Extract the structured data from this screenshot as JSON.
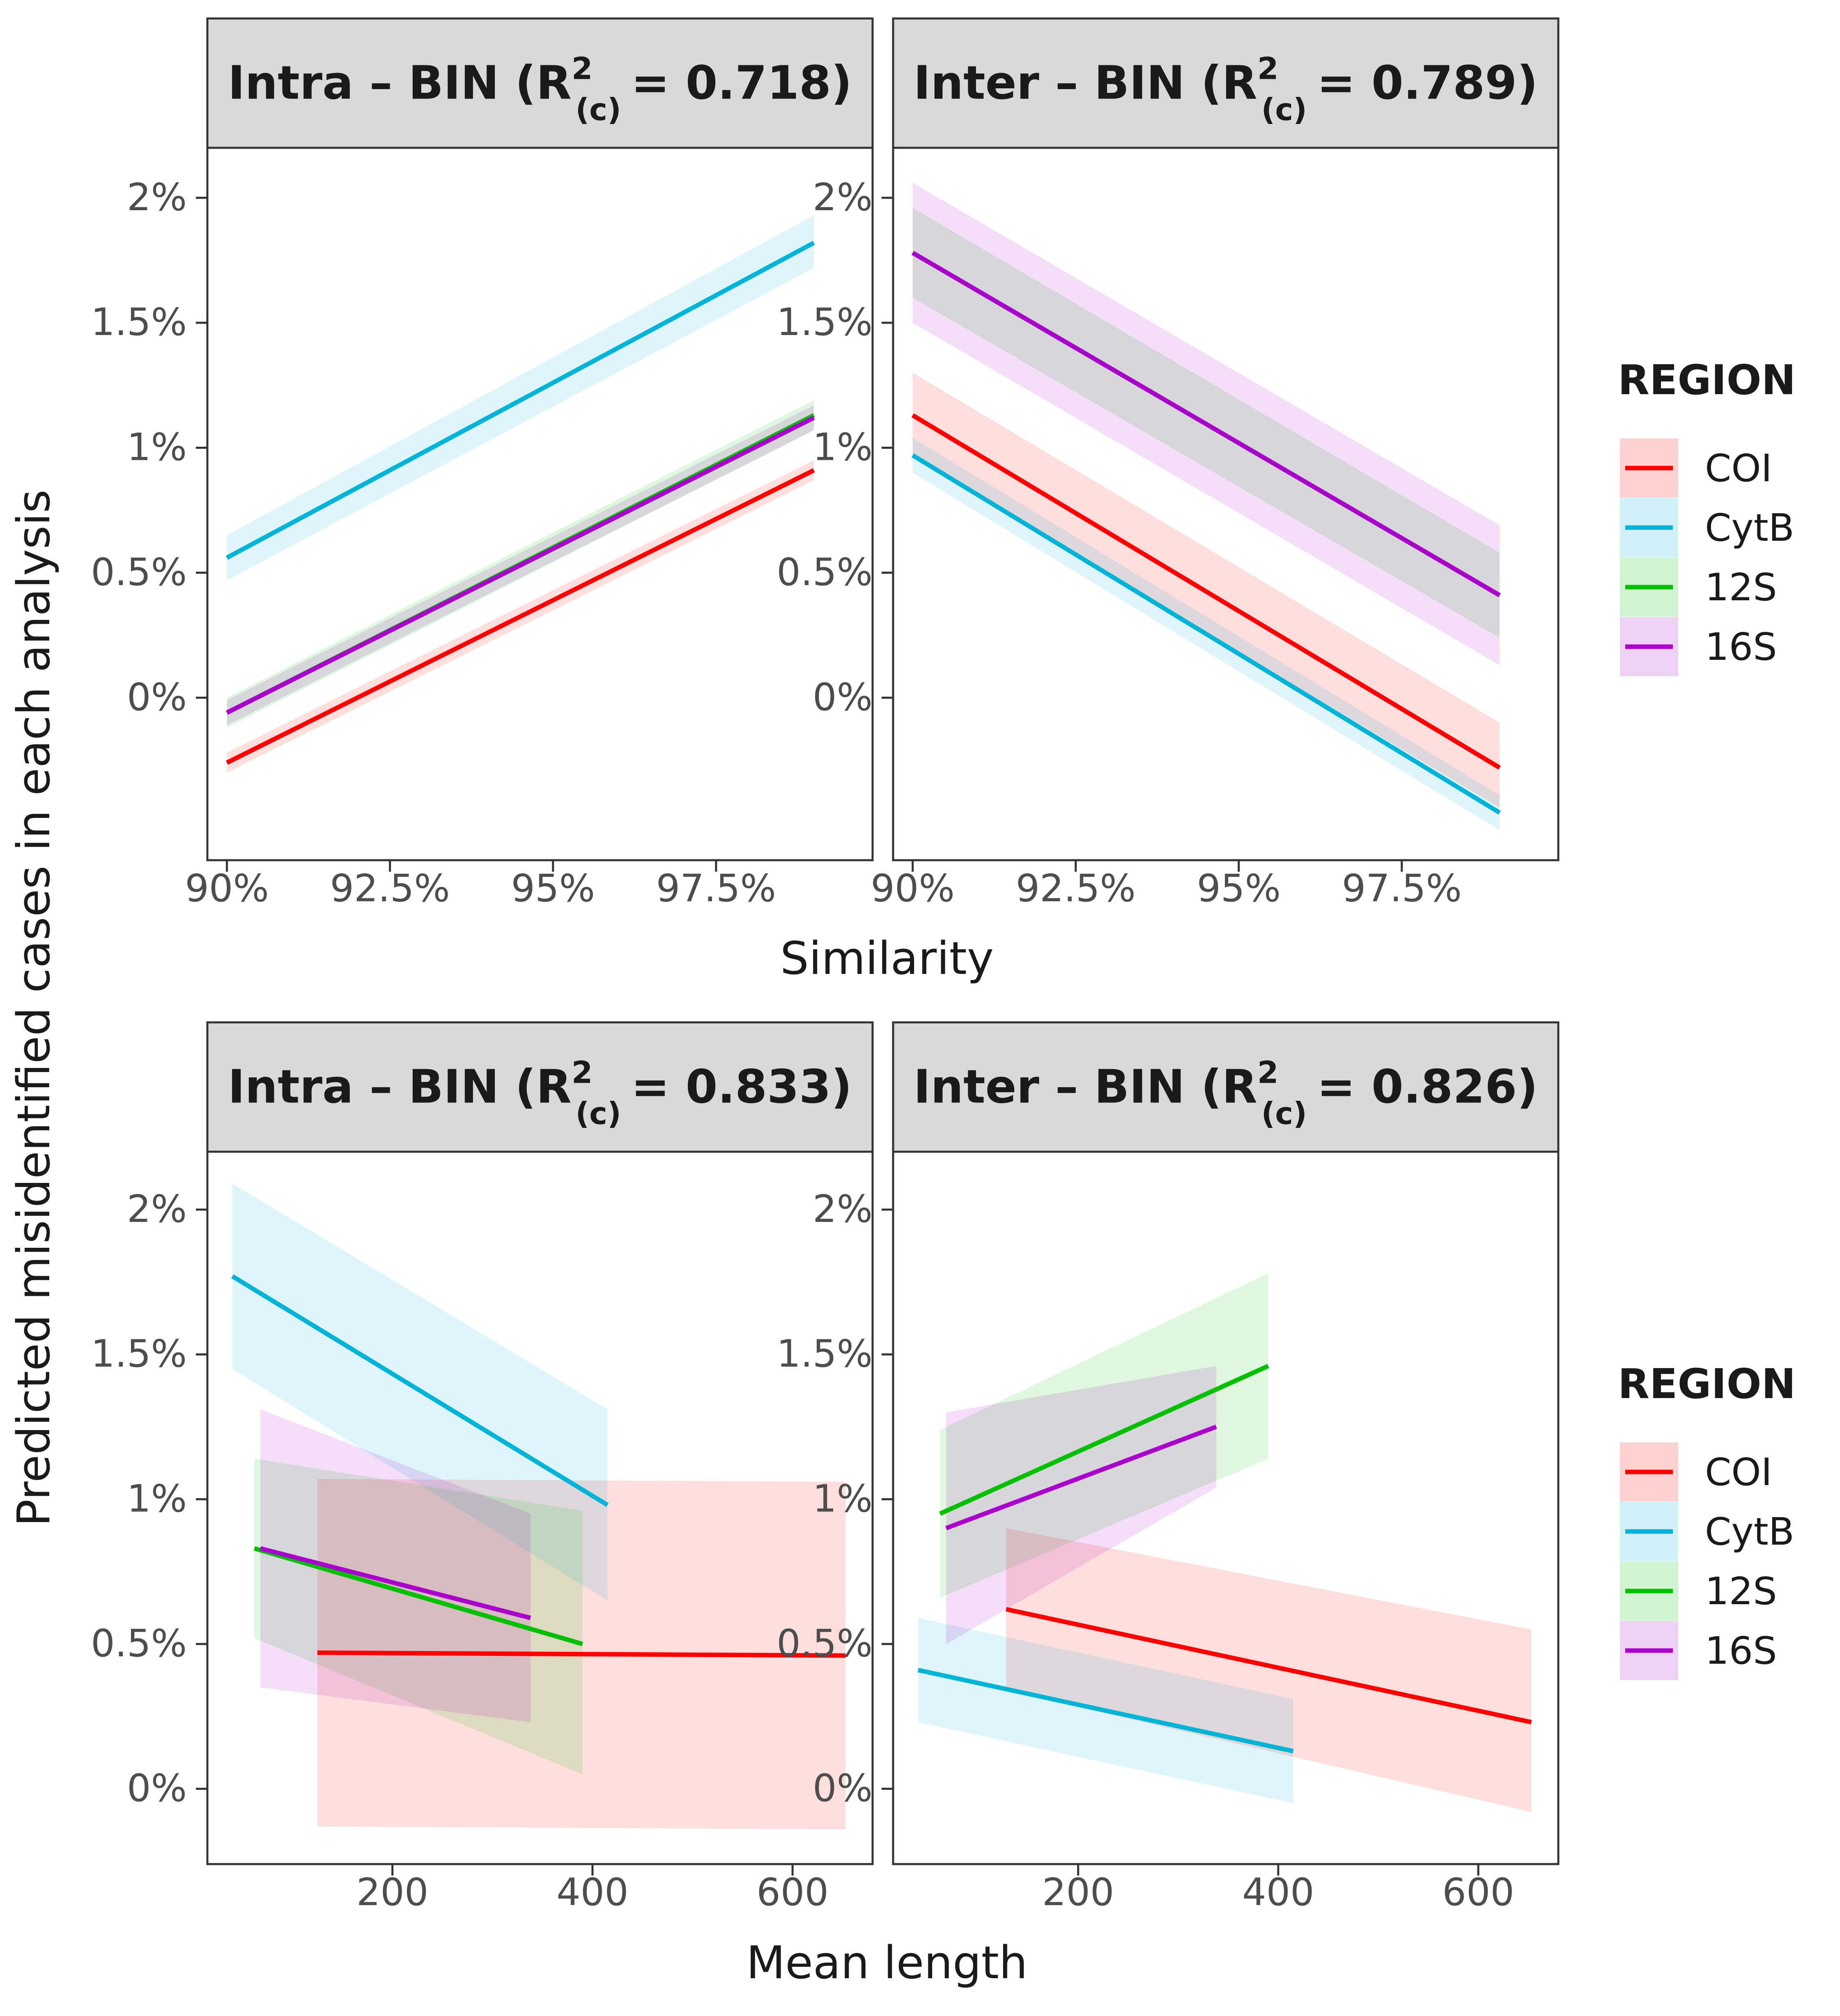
{
  "y_axis_title": "Predicted misidentified cases in each analysis",
  "legend": {
    "title": "REGION",
    "entries": [
      "COI",
      "CytB",
      "12S",
      "16S"
    ]
  },
  "colors": {
    "COI": "#ff0000",
    "CytB": "#00b4d8",
    "12S": "#00c000",
    "16S": "#aa00cc",
    "strip_background": "#d9d9d9",
    "panel_border": "#333333"
  },
  "chart_data": [
    {
      "type": "line",
      "panel": "top-left",
      "strip_prefix": "Intra – BIN (R",
      "r2_value": "= 0.718)",
      "xlabel": "Similarity",
      "ylabel": "Predicted misidentified cases in each analysis",
      "x_ticks": [
        "90%",
        "92.5%",
        "95%",
        "97.5%"
      ],
      "y_ticks": [
        "0%",
        "0.5%",
        "1%",
        "1.5%",
        "2%"
      ],
      "xlim": [
        89.7,
        99.9
      ],
      "ylim": [
        -0.65,
        2.2
      ],
      "series": [
        {
          "name": "COI",
          "x": [
            90,
            99
          ],
          "y": [
            -0.26,
            0.91
          ],
          "lower": [
            -0.3,
            0.87
          ],
          "upper": [
            -0.22,
            0.95
          ]
        },
        {
          "name": "CytB",
          "x": [
            90,
            99
          ],
          "y": [
            0.56,
            1.82
          ],
          "lower": [
            0.47,
            1.72
          ],
          "upper": [
            0.65,
            1.93
          ]
        },
        {
          "name": "12S",
          "x": [
            90,
            99
          ],
          "y": [
            -0.06,
            1.13
          ],
          "lower": [
            -0.12,
            1.07
          ],
          "upper": [
            0.0,
            1.19
          ]
        },
        {
          "name": "16S",
          "x": [
            90,
            99
          ],
          "y": [
            -0.06,
            1.12
          ],
          "lower": [
            -0.11,
            1.07
          ],
          "upper": [
            -0.01,
            1.17
          ]
        }
      ]
    },
    {
      "type": "line",
      "panel": "top-right",
      "strip_prefix": "Inter – BIN (R",
      "r2_value": "= 0.789)",
      "xlabel": "Similarity",
      "ylabel": "Predicted misidentified cases in each analysis",
      "x_ticks": [
        "90%",
        "92.5%",
        "95%",
        "97.5%"
      ],
      "y_ticks": [
        "0%",
        "0.5%",
        "1%",
        "1.5%",
        "2%"
      ],
      "xlim": [
        89.7,
        99.9
      ],
      "ylim": [
        -0.65,
        2.2
      ],
      "series": [
        {
          "name": "COI",
          "x": [
            90,
            99
          ],
          "y": [
            1.13,
            -0.28
          ],
          "lower": [
            0.96,
            -0.44
          ],
          "upper": [
            1.3,
            -0.1
          ]
        },
        {
          "name": "CytB",
          "x": [
            90,
            99
          ],
          "y": [
            0.97,
            -0.46
          ],
          "lower": [
            0.9,
            -0.53
          ],
          "upper": [
            1.04,
            -0.39
          ]
        },
        {
          "name": "12S",
          "x": [
            90,
            99
          ],
          "y": [
            1.78,
            0.41
          ],
          "lower": [
            1.6,
            0.24
          ],
          "upper": [
            1.96,
            0.58
          ]
        },
        {
          "name": "16S",
          "x": [
            90,
            99
          ],
          "y": [
            1.78,
            0.41
          ],
          "lower": [
            1.5,
            0.13
          ],
          "upper": [
            2.06,
            0.69
          ]
        }
      ]
    },
    {
      "type": "line",
      "panel": "bottom-left",
      "strip_prefix": "Intra – BIN (R",
      "r2_value": "= 0.833)",
      "xlabel": "Mean length",
      "ylabel": "Predicted misidentified cases in each analysis",
      "x_ticks": [
        "200",
        "400",
        "600"
      ],
      "y_ticks": [
        "0%",
        "0.5%",
        "1%",
        "1.5%",
        "2%"
      ],
      "xlim": [
        15,
        680
      ],
      "ylim": [
        -0.26,
        2.2
      ],
      "series": [
        {
          "name": "COI",
          "x": [
            125,
            653
          ],
          "y": [
            0.47,
            0.46
          ],
          "lower": [
            -0.13,
            -0.14
          ],
          "upper": [
            1.07,
            1.06
          ]
        },
        {
          "name": "CytB",
          "x": [
            40,
            415
          ],
          "y": [
            1.77,
            0.98
          ],
          "lower": [
            1.45,
            0.65
          ],
          "upper": [
            2.09,
            1.31
          ]
        },
        {
          "name": "12S",
          "x": [
            62,
            390
          ],
          "y": [
            0.83,
            0.5
          ],
          "lower": [
            0.52,
            0.05
          ],
          "upper": [
            1.14,
            0.96
          ]
        },
        {
          "name": "16S",
          "x": [
            68,
            338
          ],
          "y": [
            0.83,
            0.59
          ],
          "lower": [
            0.35,
            0.23
          ],
          "upper": [
            1.31,
            0.95
          ]
        }
      ]
    },
    {
      "type": "line",
      "panel": "bottom-right",
      "strip_prefix": "Inter – BIN (R",
      "r2_value": "= 0.826)",
      "xlabel": "Mean length",
      "ylabel": "Predicted misidentified cases in each analysis",
      "x_ticks": [
        "200",
        "400",
        "600"
      ],
      "y_ticks": [
        "0%",
        "0.5%",
        "1%",
        "1.5%",
        "2%"
      ],
      "xlim": [
        15,
        680
      ],
      "ylim": [
        -0.26,
        2.2
      ],
      "series": [
        {
          "name": "COI",
          "x": [
            128,
            653
          ],
          "y": [
            0.62,
            0.23
          ],
          "lower": [
            0.34,
            -0.08
          ],
          "upper": [
            0.9,
            0.55
          ]
        },
        {
          "name": "CytB",
          "x": [
            40,
            415
          ],
          "y": [
            0.41,
            0.13
          ],
          "lower": [
            0.23,
            -0.05
          ],
          "upper": [
            0.59,
            0.31
          ]
        },
        {
          "name": "12S",
          "x": [
            62,
            390
          ],
          "y": [
            0.95,
            1.46
          ],
          "lower": [
            0.66,
            1.14
          ],
          "upper": [
            1.24,
            1.78
          ]
        },
        {
          "name": "16S",
          "x": [
            68,
            338
          ],
          "y": [
            0.9,
            1.25
          ],
          "lower": [
            0.5,
            1.04
          ],
          "upper": [
            1.3,
            1.46
          ]
        }
      ]
    }
  ]
}
